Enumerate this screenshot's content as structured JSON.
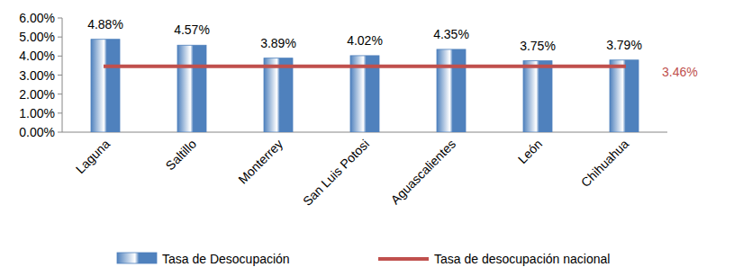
{
  "chart_data": {
    "type": "bar",
    "categories": [
      "Laguna",
      "Saltillo",
      "Monterrey",
      "San Luis Potosi",
      "Aguascalientes",
      "León",
      "Chihuahua"
    ],
    "series": [
      {
        "name": "Tasa de Desocupación",
        "type": "bar",
        "color": "#4f81bd",
        "values": [
          4.88,
          4.57,
          3.89,
          4.02,
          4.35,
          3.75,
          3.79
        ],
        "value_labels": [
          "4.88%",
          "4.57%",
          "3.89%",
          "4.02%",
          "4.35%",
          "3.75%",
          "3.79%"
        ]
      },
      {
        "name": "Tasa de desocupación nacional",
        "type": "line",
        "color": "#c0504d",
        "values": [
          3.46,
          3.46,
          3.46,
          3.46,
          3.46,
          3.46,
          3.46
        ],
        "value_labels": [
          null,
          null,
          null,
          null,
          null,
          null,
          "3.46%"
        ]
      }
    ],
    "ylim": [
      0,
      6
    ],
    "yticks": [
      {
        "value": 0,
        "label": "0.00%"
      },
      {
        "value": 1,
        "label": "1.00%"
      },
      {
        "value": 2,
        "label": "2.00%"
      },
      {
        "value": 3,
        "label": "3.00%"
      },
      {
        "value": 4,
        "label": "4.00%"
      },
      {
        "value": 5,
        "label": "5.00%"
      },
      {
        "value": 6,
        "label": "6.00%"
      }
    ],
    "grid": false,
    "legend": "bottom",
    "data_labels": true
  }
}
